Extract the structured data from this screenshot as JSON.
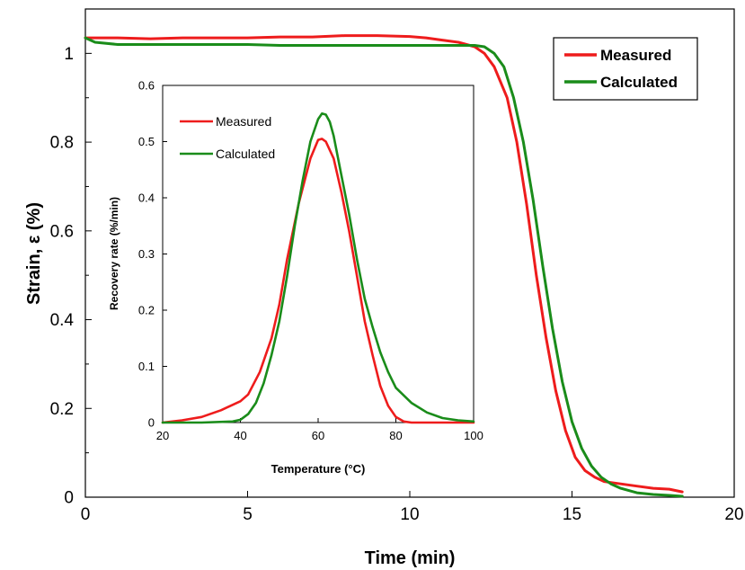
{
  "chart_data": [
    {
      "type": "line",
      "xlabel": "Time (min)",
      "ylabel": "Strain, ε (%)",
      "xlim": [
        0,
        20
      ],
      "ylim": [
        0,
        1.1
      ],
      "xticks": [
        "0",
        "5",
        "10",
        "15",
        "20"
      ],
      "yticks": [
        "0",
        "0.2",
        "0.4",
        "0.6",
        "0.8",
        "1"
      ],
      "grid": false,
      "legend": "top-right",
      "series": [
        {
          "name": "Measured",
          "color": "#ee1c1c",
          "x": [
            0,
            1,
            2,
            3,
            4,
            5,
            6,
            7,
            8,
            9,
            10,
            10.5,
            11,
            11.5,
            12,
            12.3,
            12.6,
            13,
            13.3,
            13.6,
            13.9,
            14.2,
            14.5,
            14.8,
            15.1,
            15.4,
            15.7,
            16,
            16.5,
            17,
            17.5,
            18,
            18.4
          ],
          "y": [
            1.035,
            1.035,
            1.033,
            1.035,
            1.035,
            1.035,
            1.037,
            1.037,
            1.04,
            1.04,
            1.038,
            1.035,
            1.03,
            1.025,
            1.015,
            1.0,
            0.97,
            0.9,
            0.8,
            0.66,
            0.5,
            0.36,
            0.24,
            0.15,
            0.09,
            0.06,
            0.045,
            0.035,
            0.03,
            0.025,
            0.02,
            0.018,
            0.012
          ]
        },
        {
          "name": "Calculated",
          "color": "#1a8c1a",
          "x": [
            0,
            0.3,
            1,
            2,
            3,
            4,
            5,
            6,
            7,
            8,
            9,
            10,
            11,
            11.5,
            12,
            12.3,
            12.6,
            12.9,
            13.2,
            13.5,
            13.8,
            14.1,
            14.4,
            14.7,
            15,
            15.3,
            15.6,
            15.9,
            16.2,
            16.5,
            17,
            17.5,
            18,
            18.4
          ],
          "y": [
            1.035,
            1.025,
            1.02,
            1.02,
            1.02,
            1.02,
            1.02,
            1.018,
            1.018,
            1.018,
            1.018,
            1.018,
            1.018,
            1.018,
            1.018,
            1.015,
            1.0,
            0.97,
            0.9,
            0.8,
            0.67,
            0.52,
            0.38,
            0.26,
            0.17,
            0.11,
            0.07,
            0.045,
            0.03,
            0.02,
            0.01,
            0.006,
            0.004,
            0.002
          ]
        }
      ]
    },
    {
      "type": "line",
      "xlabel": "Temperature (°C)",
      "ylabel": "Recovery rate (%/min)",
      "xlim": [
        20,
        100
      ],
      "ylim": [
        0,
        0.6
      ],
      "xticks": [
        "20",
        "40",
        "60",
        "80",
        "100"
      ],
      "yticks": [
        "0",
        "0.1",
        "0.2",
        "0.3",
        "0.4",
        "0.5",
        "0.6"
      ],
      "grid": false,
      "legend": "top-left",
      "series": [
        {
          "name": "Measured",
          "color": "#ee1c1c",
          "x": [
            20,
            25,
            30,
            35,
            40,
            42,
            45,
            48,
            50,
            52,
            55,
            58,
            60,
            61,
            62,
            64,
            66,
            68,
            70,
            72,
            74,
            76,
            78,
            80,
            82,
            84,
            86,
            90,
            100
          ],
          "y": [
            0.0,
            0.004,
            0.01,
            0.022,
            0.038,
            0.05,
            0.09,
            0.15,
            0.21,
            0.29,
            0.39,
            0.47,
            0.503,
            0.505,
            0.5,
            0.47,
            0.41,
            0.34,
            0.26,
            0.18,
            0.12,
            0.065,
            0.03,
            0.01,
            0.002,
            0.0,
            0.0,
            0.0,
            0.0
          ]
        },
        {
          "name": "Calculated",
          "color": "#1a8c1a",
          "x": [
            20,
            30,
            38,
            40,
            42,
            44,
            46,
            48,
            50,
            52,
            54,
            56,
            58,
            60,
            61,
            62,
            63,
            64,
            66,
            68,
            70,
            72,
            74,
            76,
            78,
            80,
            84,
            88,
            92,
            96,
            100
          ],
          "y": [
            0.0,
            0.0,
            0.002,
            0.005,
            0.015,
            0.035,
            0.07,
            0.12,
            0.18,
            0.26,
            0.35,
            0.43,
            0.5,
            0.54,
            0.55,
            0.548,
            0.535,
            0.51,
            0.44,
            0.37,
            0.29,
            0.22,
            0.17,
            0.125,
            0.09,
            0.062,
            0.035,
            0.018,
            0.008,
            0.004,
            0.002
          ]
        }
      ]
    }
  ]
}
